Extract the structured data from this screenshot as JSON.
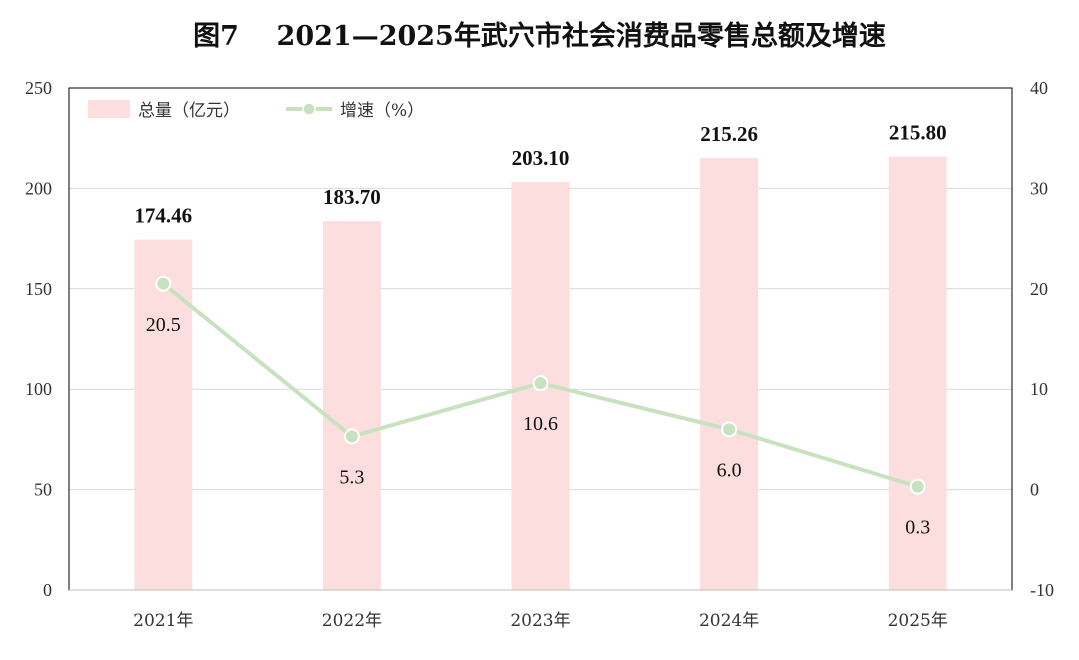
{
  "title": "图7    2021—2025年武穴市社会消费品零售总额及增速",
  "chart_data": {
    "type": "bar",
    "categories": [
      "2021年",
      "2022年",
      "2023年",
      "2024年",
      "2025年"
    ],
    "series": [
      {
        "name": "总量（亿元）",
        "type": "bar",
        "axis": "left",
        "values": [
          174.46,
          183.7,
          203.1,
          215.26,
          215.8
        ],
        "labels": [
          "174.46",
          "183.70",
          "203.10",
          "215.26",
          "215.80"
        ],
        "color": "#fddede"
      },
      {
        "name": "增速（%）",
        "type": "line",
        "axis": "right",
        "values": [
          20.5,
          5.3,
          10.6,
          6.0,
          0.3
        ],
        "labels": [
          "20.5",
          "5.3",
          "10.6",
          "6.0",
          "0.3"
        ],
        "color": "#c8e2bf"
      }
    ],
    "y_left": {
      "ylim": [
        0,
        250
      ],
      "ticks": [
        "0",
        "50",
        "100",
        "150",
        "200",
        "250"
      ]
    },
    "y_right": {
      "ylim": [
        -10,
        40
      ],
      "ticks": [
        "-10",
        "0",
        "10",
        "20",
        "30",
        "40"
      ]
    },
    "grid": true,
    "legend": "top-left"
  }
}
